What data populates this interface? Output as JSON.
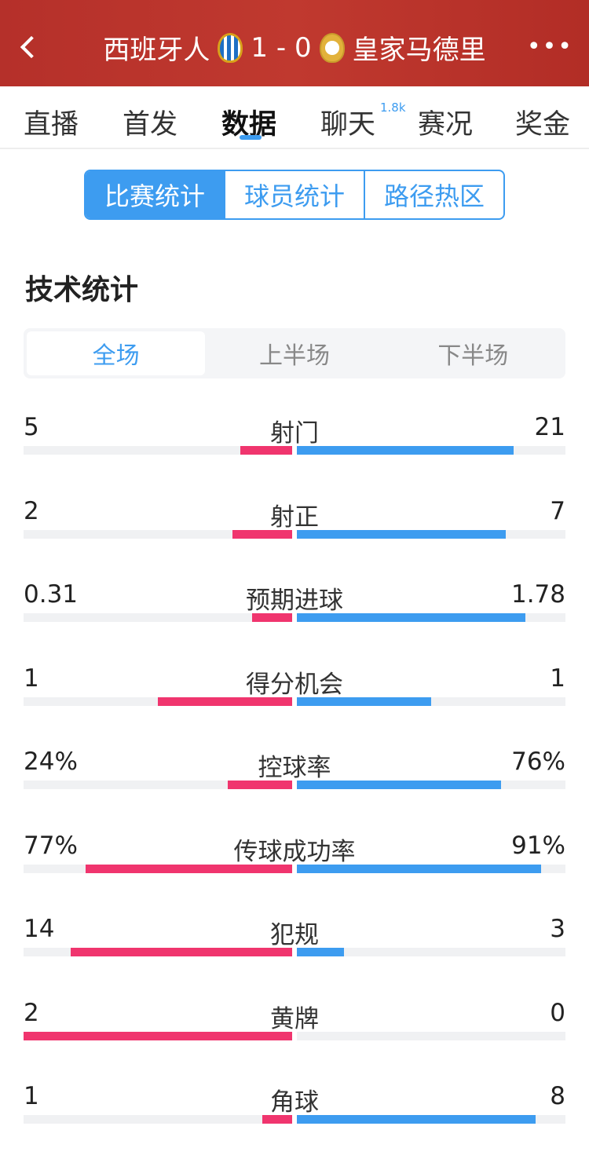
{
  "header": {
    "home": "西班牙人",
    "score": "1 - 0",
    "away": "皇家马德里"
  },
  "tabs": [
    "直播",
    "首发",
    "数据",
    "聊天",
    "赛况",
    "奖金"
  ],
  "chat_count": "1.8k",
  "segments": [
    "比赛统计",
    "球员统计",
    "路径热区"
  ],
  "section_title": "技术统计",
  "periods": [
    "全场",
    "上半场",
    "下半场"
  ],
  "colors": {
    "home": "#f0356e",
    "away": "#3d9cf0",
    "header": "#b5302a"
  },
  "stats": [
    {
      "label": "射门",
      "home": "5",
      "away": "21",
      "home_bar": 0.192,
      "away_bar": 0.808
    },
    {
      "label": "射正",
      "home": "2",
      "away": "7",
      "home_bar": 0.222,
      "away_bar": 0.778
    },
    {
      "label": "预期进球",
      "home": "0.31",
      "away": "1.78",
      "home_bar": 0.148,
      "away_bar": 0.852
    },
    {
      "label": "得分机会",
      "home": "1",
      "away": "1",
      "home_bar": 0.5,
      "away_bar": 0.5
    },
    {
      "label": "控球率",
      "home": "24%",
      "away": "76%",
      "home_bar": 0.24,
      "away_bar": 0.76
    },
    {
      "label": "传球成功率",
      "home": "77%",
      "away": "91%",
      "home_bar": 0.77,
      "away_bar": 0.91
    },
    {
      "label": "犯规",
      "home": "14",
      "away": "3",
      "home_bar": 0.824,
      "away_bar": 0.176
    },
    {
      "label": "黄牌",
      "home": "2",
      "away": "0",
      "home_bar": 1.0,
      "away_bar": 0.0
    },
    {
      "label": "角球",
      "home": "1",
      "away": "8",
      "home_bar": 0.111,
      "away_bar": 0.889
    }
  ]
}
